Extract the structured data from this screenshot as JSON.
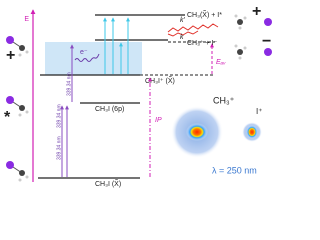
{
  "axis_label": "E",
  "levels": [
    {
      "label": "CH₃I (X̃)"
    },
    {
      "label": "CH₃I (6p)"
    },
    {
      "label": "CH₃I⁺ (X̃)"
    }
  ],
  "photon_labels": [
    "339.34 nm",
    "339.34 nm",
    "339.34 nm"
  ],
  "electron_label": "e⁻",
  "ionization_label": "IP",
  "available_energy_label": "Eₐᵥ",
  "channels": [
    "CH₃(X̃) + I*",
    "CH₃⁺ + I⁻"
  ],
  "rate_labels": [
    "k'",
    "k"
  ],
  "state_marks": [
    "+",
    "*",
    "+",
    "−"
  ],
  "images": {
    "labels": [
      "CH₃⁺",
      "I⁺"
    ],
    "wavelength": "λ = 250 nm"
  }
}
